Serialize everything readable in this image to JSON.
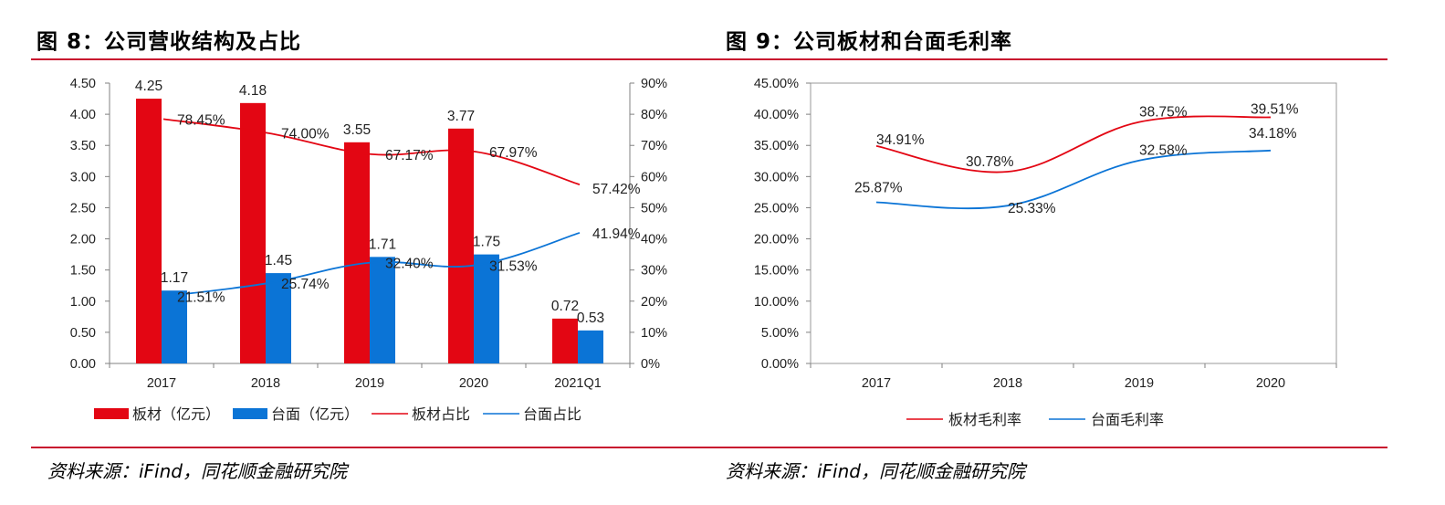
{
  "left_panel": {
    "title": "图 8：公司营收结构及占比",
    "source": "资料来源：iFind，同花顺金融研究院"
  },
  "right_panel": {
    "title": "图 9：公司板材和台面毛利率",
    "source": "资料来源：iFind，同花顺金融研究院"
  },
  "colors": {
    "red": "#e30613",
    "blue": "#0b74d6",
    "rule": "#c8102e"
  },
  "chart_data": [
    {
      "type": "bar",
      "title": "图 8：公司营收结构及占比",
      "categories": [
        "2017",
        "2018",
        "2019",
        "2020",
        "2021Q1"
      ],
      "ylim": [
        0,
        4.5
      ],
      "y_ticks": [
        "0.00",
        "0.50",
        "1.00",
        "1.50",
        "2.00",
        "2.50",
        "3.00",
        "3.50",
        "4.00",
        "4.50"
      ],
      "y2lim": [
        0,
        90
      ],
      "y2_ticks": [
        "0%",
        "10%",
        "20%",
        "30%",
        "40%",
        "50%",
        "60%",
        "70%",
        "80%",
        "90%"
      ],
      "series": [
        {
          "name": "板材（亿元）",
          "kind": "bar",
          "axis": "left",
          "color": "#e30613",
          "values": [
            4.25,
            4.18,
            3.55,
            3.77,
            0.72
          ],
          "labels": [
            "4.25",
            "4.18",
            "3.55",
            "3.77",
            "0.72"
          ]
        },
        {
          "name": "台面（亿元）",
          "kind": "bar",
          "axis": "left",
          "color": "#0b74d6",
          "values": [
            1.17,
            1.45,
            1.71,
            1.75,
            0.53
          ],
          "labels": [
            "1.17",
            "1.45",
            "1.71",
            "1.75",
            "0.53"
          ]
        },
        {
          "name": "板材占比",
          "kind": "line",
          "axis": "right",
          "color": "#e30613",
          "values": [
            78.45,
            74.0,
            67.17,
            67.97,
            57.42
          ],
          "labels": [
            "78.45%",
            "74.00%",
            "67.17%",
            "67.97%",
            "57.42%"
          ]
        },
        {
          "name": "台面占比",
          "kind": "line",
          "axis": "right",
          "color": "#0b74d6",
          "values": [
            21.51,
            25.74,
            32.4,
            31.53,
            41.94
          ],
          "labels": [
            "21.51%",
            "25.74%",
            "32.40%",
            "31.53%",
            "41.94%"
          ]
        }
      ],
      "legend": "bottom"
    },
    {
      "type": "line",
      "title": "图 9：公司板材和台面毛利率",
      "categories": [
        "2017",
        "2018",
        "2019",
        "2020"
      ],
      "ylim": [
        0,
        45
      ],
      "y_ticks": [
        "0.00%",
        "5.00%",
        "10.00%",
        "15.00%",
        "20.00%",
        "25.00%",
        "30.00%",
        "35.00%",
        "40.00%",
        "45.00%"
      ],
      "series": [
        {
          "name": "板材毛利率",
          "color": "#e30613",
          "values": [
            34.91,
            30.78,
            38.75,
            39.51
          ],
          "labels": [
            "34.91%",
            "30.78%",
            "38.75%",
            "39.51%"
          ]
        },
        {
          "name": "台面毛利率",
          "color": "#0b74d6",
          "values": [
            25.87,
            25.33,
            32.58,
            34.18
          ],
          "labels": [
            "25.87%",
            "25.33%",
            "32.58%",
            "34.18%"
          ]
        }
      ],
      "legend": "bottom"
    }
  ]
}
